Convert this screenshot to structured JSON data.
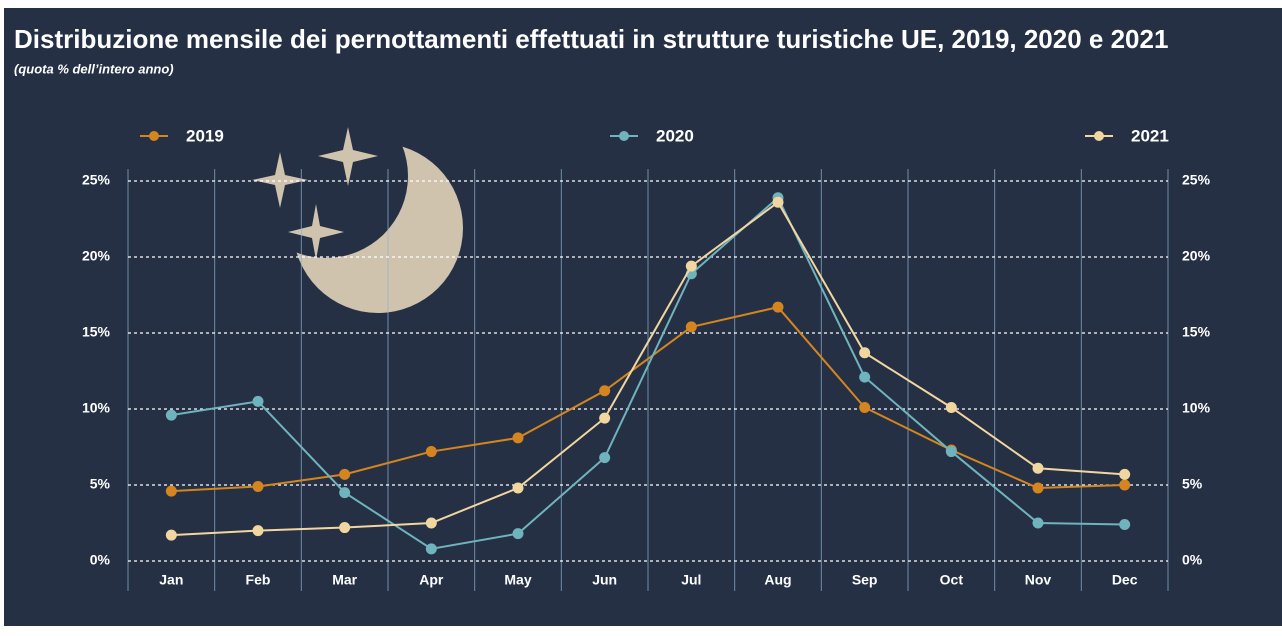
{
  "chart_data": {
    "type": "line",
    "title": "Distribuzione mensile dei pernottamenti effettuati in strutture turistiche UE, 2019, 2020 e 2021",
    "subtitle": "(quota % dell’intero anno)",
    "categories": [
      "Jan",
      "Feb",
      "Mar",
      "Apr",
      "May",
      "Jun",
      "Jul",
      "Aug",
      "Sep",
      "Oct",
      "Nov",
      "Dec"
    ],
    "series": [
      {
        "name": "2019",
        "color": "#d4851f",
        "values": [
          4.6,
          4.9,
          5.7,
          7.2,
          8.1,
          11.2,
          15.4,
          16.7,
          10.1,
          7.3,
          4.8,
          5.0
        ]
      },
      {
        "name": "2020",
        "color": "#6fb3bd",
        "values": [
          9.6,
          10.5,
          4.5,
          0.8,
          1.8,
          6.8,
          18.9,
          23.9,
          12.1,
          7.2,
          2.5,
          2.4
        ]
      },
      {
        "name": "2021",
        "color": "#f2d6a0",
        "values": [
          1.7,
          2.0,
          2.2,
          2.5,
          4.8,
          9.4,
          19.4,
          23.6,
          13.7,
          10.1,
          6.1,
          5.7
        ]
      }
    ],
    "ylim": [
      0,
      25
    ],
    "yticks": [
      {
        "value": 0,
        "label": "0%"
      },
      {
        "value": 5,
        "label": "5%"
      },
      {
        "value": 10,
        "label": "10%"
      },
      {
        "value": 15,
        "label": "15%"
      },
      {
        "value": 20,
        "label": "20%"
      },
      {
        "value": 25,
        "label": "25%"
      }
    ],
    "y2lim": [
      0,
      25
    ],
    "y2ticks": [
      {
        "value": 0,
        "label": "0%"
      },
      {
        "value": 5,
        "label": "5%"
      },
      {
        "value": 10,
        "label": "10%"
      },
      {
        "value": 15,
        "label": "15%"
      },
      {
        "value": 20,
        "label": "20%"
      },
      {
        "value": 25,
        "label": "25%"
      }
    ],
    "grid": true
  }
}
